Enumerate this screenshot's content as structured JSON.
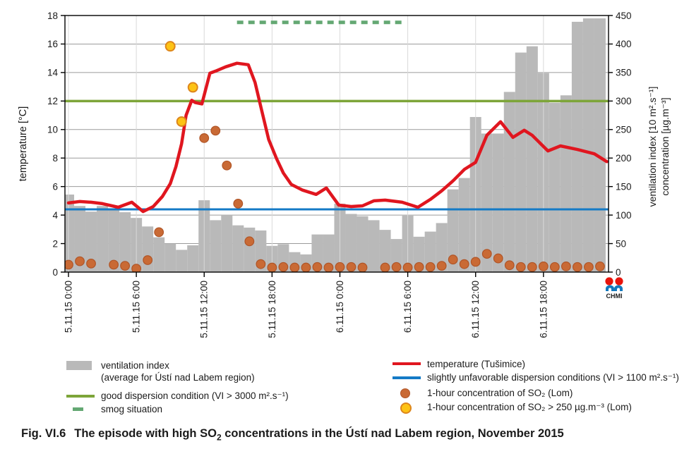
{
  "caption": {
    "fig": "Fig. VI.6",
    "before": "The episode with high SO",
    "sub": "2",
    "after": " concentrations in the Ústí nad Labem region, November 2015"
  },
  "logo": {
    "text": "CHMI"
  },
  "colors": {
    "bar": "#b9b9b9",
    "temperature": "#e0161f",
    "blue_line": "#147ac6",
    "green_line": "#7da539",
    "smog_dash": "#64a873",
    "orange_dot": "#c96a35",
    "orange_dot_edge": "#b05527",
    "yellow_dot": "#fdc315",
    "yellow_dot_edge": "#dd861c",
    "grid": "#9b9b9b",
    "vgrid": "#d9d9d9",
    "axis": "#000000",
    "logo_red": "#e8140c",
    "logo_blue": "#1279be",
    "logo_text": "#1d1d55"
  },
  "chart_data": {
    "type": "combo (bar + line + scatter)",
    "left_axis": {
      "label": "temperature [°C]",
      "min": 0,
      "max": 18,
      "ticks": [
        0,
        2,
        4,
        6,
        8,
        10,
        12,
        14,
        16,
        18
      ]
    },
    "right_axis": {
      "label_line1": "ventilation index [10 m².s⁻¹]",
      "label_line2": "concentration [µg.m⁻³]",
      "min": 0,
      "max": 450,
      "ticks": [
        0,
        50,
        100,
        150,
        200,
        250,
        300,
        350,
        400,
        450
      ]
    },
    "x_axis": {
      "hours_total": 48,
      "tick_hours": [
        0,
        6,
        12,
        18,
        24,
        30,
        36,
        42
      ],
      "tick_labels": [
        "5.11.15 0:00",
        "5.11.15 6:00",
        "5.11.15 12:00",
        "5.11.15 18:00",
        "6.11.15 0:00",
        "6.11.15 6:00",
        "6.11.15 12:00",
        "6.11.15 18:00"
      ]
    },
    "ventilation_index_bars_right_units": [
      136,
      116,
      106,
      116,
      112,
      105,
      95,
      80,
      61,
      50,
      39,
      47,
      126,
      91,
      100,
      82,
      78,
      73,
      46,
      49,
      35,
      31,
      66,
      66,
      120,
      102,
      98,
      91,
      74,
      58,
      99,
      62,
      71,
      86,
      145,
      165,
      272,
      243,
      243,
      316,
      385,
      396,
      349,
      297,
      310,
      439,
      445,
      445
    ],
    "temperature_line_points_hour_degC": [
      [
        0,
        4.85
      ],
      [
        1,
        4.95
      ],
      [
        2,
        4.9
      ],
      [
        3,
        4.8
      ],
      [
        4.4,
        4.55
      ],
      [
        5.6,
        4.9
      ],
      [
        6.6,
        4.25
      ],
      [
        7.5,
        4.6
      ],
      [
        8.3,
        5.3
      ],
      [
        9,
        6.2
      ],
      [
        9.5,
        7.4
      ],
      [
        10,
        9.0
      ],
      [
        10.4,
        11.0
      ],
      [
        10.9,
        12.05
      ],
      [
        11.2,
        11.9
      ],
      [
        11.8,
        11.8
      ],
      [
        12.5,
        13.95
      ],
      [
        13,
        14.1
      ],
      [
        13.9,
        14.4
      ],
      [
        14.9,
        14.65
      ],
      [
        15.9,
        14.55
      ],
      [
        16.5,
        13.3
      ],
      [
        17.1,
        11.3
      ],
      [
        17.7,
        9.3
      ],
      [
        18.4,
        7.95
      ],
      [
        19,
        6.95
      ],
      [
        19.7,
        6.15
      ],
      [
        20.7,
        5.75
      ],
      [
        21.9,
        5.45
      ],
      [
        22.8,
        5.9
      ],
      [
        23.9,
        4.7
      ],
      [
        25,
        4.6
      ],
      [
        26,
        4.65
      ],
      [
        27,
        5.0
      ],
      [
        28,
        5.05
      ],
      [
        29.5,
        4.9
      ],
      [
        30.9,
        4.55
      ],
      [
        32,
        5.1
      ],
      [
        33,
        5.7
      ],
      [
        34,
        6.4
      ],
      [
        35,
        7.2
      ],
      [
        36,
        7.7
      ],
      [
        37,
        9.6
      ],
      [
        38.2,
        10.55
      ],
      [
        39.3,
        9.45
      ],
      [
        40.3,
        9.95
      ],
      [
        41,
        9.6
      ],
      [
        42.4,
        8.5
      ],
      [
        43.5,
        8.85
      ],
      [
        45,
        8.6
      ],
      [
        46.5,
        8.3
      ],
      [
        47.6,
        7.75
      ]
    ],
    "reference_lines": {
      "good_dispersion": {
        "value_right_units": 300,
        "threshold_text": "VI > 3000 m².s⁻¹"
      },
      "slightly_unfavorable": {
        "value_right_units": 110,
        "threshold_text": "VI > 1100 m².s⁻¹"
      },
      "smog_situation": {
        "value_right_units": 438,
        "from_hour": 14.9,
        "to_hour": 29.5
      }
    },
    "so2_1h_orange_hour_ugm3": [
      [
        0,
        13
      ],
      [
        1,
        19
      ],
      [
        2,
        15
      ],
      [
        4,
        13
      ],
      [
        5,
        11
      ],
      [
        6,
        6
      ],
      [
        7,
        21
      ],
      [
        8,
        70
      ],
      [
        12,
        235
      ],
      [
        13,
        248
      ],
      [
        14,
        187
      ],
      [
        15,
        120
      ],
      [
        16,
        54
      ],
      [
        17,
        14
      ],
      [
        18,
        8
      ],
      [
        19,
        9
      ],
      [
        20,
        8
      ],
      [
        21,
        8
      ],
      [
        22,
        9
      ],
      [
        23,
        8
      ],
      [
        24,
        9
      ],
      [
        25,
        9
      ],
      [
        26,
        8
      ],
      [
        28,
        8
      ],
      [
        29,
        9
      ],
      [
        30,
        8
      ],
      [
        31,
        9
      ],
      [
        32,
        9
      ],
      [
        33,
        11
      ],
      [
        34,
        22
      ],
      [
        35,
        14
      ],
      [
        36,
        18
      ],
      [
        37,
        32
      ],
      [
        38,
        24
      ],
      [
        39,
        12
      ],
      [
        40,
        9
      ],
      [
        41,
        9
      ],
      [
        42,
        10
      ],
      [
        43,
        9
      ],
      [
        44,
        10
      ],
      [
        45,
        9
      ],
      [
        46,
        9
      ],
      [
        47,
        10
      ]
    ],
    "so2_1h_yellow_over250_hour_ugm3": [
      [
        9,
        396
      ],
      [
        10,
        264
      ],
      [
        11,
        324
      ]
    ]
  },
  "legend": {
    "left": [
      {
        "swatch": "bar",
        "lines": [
          "ventilation index",
          "(average for Ústí nad Labem region)"
        ],
        "mt": 0
      },
      {
        "swatch": "line-green",
        "lines": [
          "good dispersion condition (VI > 3000 m².s⁻¹)"
        ],
        "mt": 9
      },
      {
        "swatch": "dash-green",
        "lines": [
          "smog situation"
        ],
        "mt": 0
      }
    ],
    "right": [
      {
        "swatch": "line-red",
        "lines": [
          "temperature (Tušimice)"
        ],
        "mt": 0
      },
      {
        "swatch": "line-blue",
        "lines": [
          "slightly unfavorable dispersion conditions (VI > 1100 m².s⁻¹)"
        ],
        "mt": 0
      },
      {
        "swatch": "dot-orange",
        "lines": [
          "1-hour concentration of SO₂ (Lom)"
        ],
        "mt": 5
      },
      {
        "swatch": "dot-yellow",
        "lines": [
          "1-hour concentration of SO₂ > 250 µg.m⁻³ (Lom)"
        ],
        "mt": 3
      }
    ]
  }
}
